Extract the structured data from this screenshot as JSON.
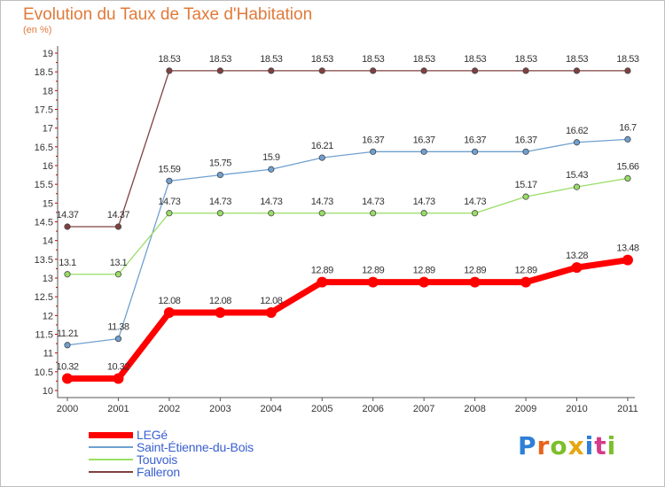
{
  "header": {
    "title": "Evolution du Taux de Taxe d'Habitation",
    "unit": "(en %)"
  },
  "logo": {
    "text": "Proxiti",
    "letter_colors": [
      "#2e7fd6",
      "#e8631a",
      "#7cbf2a",
      "#e5a70f",
      "#2e7fd6",
      "#d63a8a",
      "#7cbf2a"
    ]
  },
  "chart_data": {
    "type": "line",
    "title": "Evolution du Taux de Taxe d'Habitation",
    "ylabel": "(en %)",
    "xlabel": "",
    "x": [
      "2000",
      "2001",
      "2002",
      "2003",
      "2004",
      "2005",
      "2006",
      "2007",
      "2008",
      "2009",
      "2010",
      "2011"
    ],
    "ylim": [
      10,
      19
    ],
    "yticks": [
      "10",
      "10.5",
      "11",
      "11.5",
      "12",
      "12.5",
      "13",
      "13.5",
      "14",
      "14.5",
      "15",
      "15.5",
      "16",
      "16.5",
      "17",
      "17.5",
      "18",
      "18.5",
      "19"
    ],
    "grid": false,
    "legend_position": "bottom-left",
    "series": [
      {
        "name": "LEGé",
        "color": "#ff0000",
        "values": [
          10.32,
          10.32,
          12.08,
          12.08,
          12.08,
          12.89,
          12.89,
          12.89,
          12.89,
          12.89,
          13.28,
          13.48
        ],
        "labels": [
          "10.32",
          "10.32",
          "12.08",
          "12.08",
          "12.08",
          "12.89",
          "12.89",
          "12.89",
          "12.89",
          "12.89",
          "13.28",
          "13.48"
        ]
      },
      {
        "name": "Saint-Étienne-du-Bois",
        "color": "#6fa0d0",
        "values": [
          11.21,
          11.38,
          15.59,
          15.75,
          15.9,
          16.21,
          16.37,
          16.37,
          16.37,
          16.37,
          16.62,
          16.7
        ],
        "labels": [
          "11.21",
          "11.38",
          "15.59",
          "15.75",
          "15.9",
          "16.21",
          "16.37",
          "16.37",
          "16.37",
          "16.37",
          "16.62",
          "16.7"
        ]
      },
      {
        "name": "Touvois",
        "color": "#99dd66",
        "values": [
          13.1,
          13.1,
          14.73,
          14.73,
          14.73,
          14.73,
          14.73,
          14.73,
          14.73,
          15.17,
          15.43,
          15.66
        ],
        "labels": [
          "13.1",
          "13.1",
          "14.73",
          "14.73",
          "14.73",
          "14.73",
          "14.73",
          "14.73",
          "14.73",
          "15.17",
          "15.43",
          "15.66"
        ]
      },
      {
        "name": "Falleron",
        "color": "#804040",
        "values": [
          14.37,
          14.37,
          18.53,
          18.53,
          18.53,
          18.53,
          18.53,
          18.53,
          18.53,
          18.53,
          18.53,
          18.53
        ],
        "labels": [
          "14.37",
          "14.37",
          "18.53",
          "18.53",
          "18.53",
          "18.53",
          "18.53",
          "18.53",
          "18.53",
          "18.53",
          "18.53",
          "18.53"
        ]
      }
    ]
  }
}
